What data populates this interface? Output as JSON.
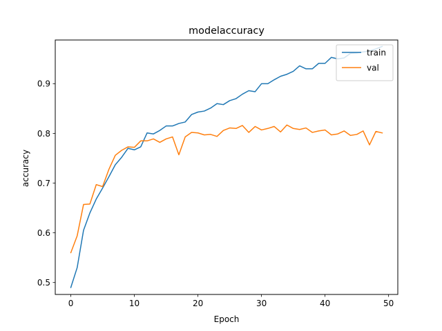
{
  "chart_data": {
    "type": "line",
    "title": "modelaccuracy",
    "xlabel": "Epoch",
    "ylabel": "accuracy",
    "xlim": [
      -2.45,
      51.45
    ],
    "ylim": [
      0.476,
      0.988
    ],
    "xticks": [
      0,
      10,
      20,
      30,
      40,
      50
    ],
    "yticks": [
      0.5,
      0.6,
      0.7,
      0.8,
      0.9
    ],
    "grid": false,
    "legend": "top-right",
    "x": [
      0,
      1,
      2,
      3,
      4,
      5,
      6,
      7,
      8,
      9,
      10,
      11,
      12,
      13,
      14,
      15,
      16,
      17,
      18,
      19,
      20,
      21,
      22,
      23,
      24,
      25,
      26,
      27,
      28,
      29,
      30,
      31,
      32,
      33,
      34,
      35,
      36,
      37,
      38,
      39,
      40,
      41,
      42,
      43,
      44,
      45,
      46,
      47,
      48,
      49
    ],
    "series": [
      {
        "name": "train",
        "color": "#1f77b4",
        "values": [
          0.49,
          0.53,
          0.605,
          0.64,
          0.668,
          0.69,
          0.713,
          0.737,
          0.752,
          0.77,
          0.767,
          0.773,
          0.801,
          0.799,
          0.806,
          0.815,
          0.815,
          0.82,
          0.823,
          0.838,
          0.843,
          0.845,
          0.851,
          0.86,
          0.858,
          0.866,
          0.87,
          0.879,
          0.886,
          0.884,
          0.9,
          0.9,
          0.908,
          0.915,
          0.919,
          0.925,
          0.936,
          0.93,
          0.93,
          0.941,
          0.941,
          0.953,
          0.95,
          0.952,
          0.961,
          0.962,
          0.964,
          0.966,
          0.97,
          0.975
        ]
      },
      {
        "name": "val",
        "color": "#ff7f0e",
        "values": [
          0.56,
          0.594,
          0.657,
          0.658,
          0.697,
          0.693,
          0.728,
          0.756,
          0.766,
          0.773,
          0.772,
          0.785,
          0.785,
          0.789,
          0.782,
          0.789,
          0.793,
          0.757,
          0.793,
          0.802,
          0.801,
          0.797,
          0.798,
          0.794,
          0.806,
          0.811,
          0.81,
          0.816,
          0.802,
          0.814,
          0.807,
          0.81,
          0.814,
          0.803,
          0.817,
          0.81,
          0.808,
          0.811,
          0.802,
          0.805,
          0.807,
          0.797,
          0.799,
          0.805,
          0.796,
          0.798,
          0.805,
          0.777,
          0.804,
          0.801
        ]
      }
    ]
  }
}
